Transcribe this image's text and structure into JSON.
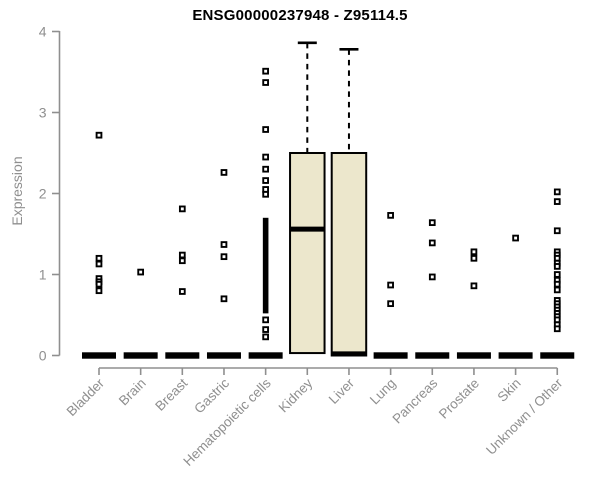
{
  "chart_data": {
    "type": "boxplot",
    "title": "ENSG00000237948 - Z95114.5",
    "ylabel": "Expression",
    "xlabel": "",
    "ylim": [
      0,
      4
    ],
    "yticks": [
      "0",
      "1",
      "2",
      "3",
      "4"
    ],
    "grid": "off",
    "legend": "none",
    "categories": [
      "Bladder",
      "Brain",
      "Breast",
      "Gastric",
      "Hematopoietic cells",
      "Kidney",
      "Liver",
      "Lung",
      "Pancreas",
      "Prostate",
      "Skin",
      "Unknown / Other"
    ],
    "boxes": [
      {
        "category": "Bladder",
        "q1": 0,
        "median": 0,
        "q3": 0,
        "whisker_low": 0,
        "whisker_high": 0,
        "collapsed": true,
        "outliers": [
          2.72,
          1.2,
          1.13,
          0.95,
          0.91,
          0.88,
          0.8
        ]
      },
      {
        "category": "Brain",
        "q1": 0,
        "median": 0,
        "q3": 0,
        "whisker_low": 0,
        "whisker_high": 0,
        "collapsed": true,
        "outliers": [
          1.03
        ]
      },
      {
        "category": "Breast",
        "q1": 0,
        "median": 0,
        "q3": 0,
        "whisker_low": 0,
        "whisker_high": 0,
        "collapsed": true,
        "outliers": [
          1.81,
          1.24,
          1.17,
          0.79
        ]
      },
      {
        "category": "Gastric",
        "q1": 0,
        "median": 0,
        "q3": 0,
        "whisker_low": 0,
        "whisker_high": 0,
        "collapsed": true,
        "outliers": [
          2.26,
          1.37,
          1.22,
          0.7
        ]
      },
      {
        "category": "Hematopoietic cells",
        "q1": 0,
        "median": 0,
        "q3": 0,
        "whisker_low": 0,
        "whisker_high": 0,
        "collapsed": true,
        "outliers": [
          3.51,
          3.37,
          2.79,
          2.45,
          2.3,
          2.16,
          2.05,
          1.99,
          0.44,
          0.32,
          0.23
        ],
        "outlier_band": {
          "from": 0.52,
          "to": 1.7
        }
      },
      {
        "category": "Kidney",
        "q1": 0.03,
        "median": 1.56,
        "q3": 2.5,
        "whisker_low": 0.03,
        "whisker_high": 3.86,
        "collapsed": false,
        "outliers": []
      },
      {
        "category": "Liver",
        "q1": 0,
        "median": 0.02,
        "q3": 2.5,
        "whisker_low": 0,
        "whisker_high": 3.78,
        "collapsed": false,
        "outliers": []
      },
      {
        "category": "Lung",
        "q1": 0,
        "median": 0,
        "q3": 0,
        "whisker_low": 0,
        "whisker_high": 0,
        "collapsed": true,
        "outliers": [
          1.73,
          0.87,
          0.64
        ]
      },
      {
        "category": "Pancreas",
        "q1": 0,
        "median": 0,
        "q3": 0,
        "whisker_low": 0,
        "whisker_high": 0,
        "collapsed": true,
        "outliers": [
          1.64,
          1.39,
          0.97
        ]
      },
      {
        "category": "Prostate",
        "q1": 0,
        "median": 0,
        "q3": 0,
        "whisker_low": 0,
        "whisker_high": 0,
        "collapsed": true,
        "outliers": [
          1.28,
          1.2,
          0.86
        ]
      },
      {
        "category": "Skin",
        "q1": 0,
        "median": 0,
        "q3": 0,
        "whisker_low": 0,
        "whisker_high": 0,
        "collapsed": true,
        "outliers": [
          1.45
        ]
      },
      {
        "category": "Unknown / Other",
        "q1": 0,
        "median": 0,
        "q3": 0,
        "whisker_low": 0,
        "whisker_high": 0,
        "collapsed": true,
        "outliers": [
          2.02,
          1.9,
          1.54,
          1.28,
          1.24,
          1.2,
          1.14,
          1.1,
          1.0,
          0.93,
          0.88,
          0.81,
          0.68,
          0.64,
          0.6,
          0.56,
          0.52,
          0.48,
          0.44,
          0.38,
          0.33
        ]
      }
    ],
    "colors": {
      "box_fill": "#ece7cc",
      "box_stroke": "#000000",
      "median": "#000000",
      "outlier": "#000000",
      "axis": "#8f8f8f",
      "tick_label": "#8f8f8f",
      "title": "#000000"
    }
  }
}
